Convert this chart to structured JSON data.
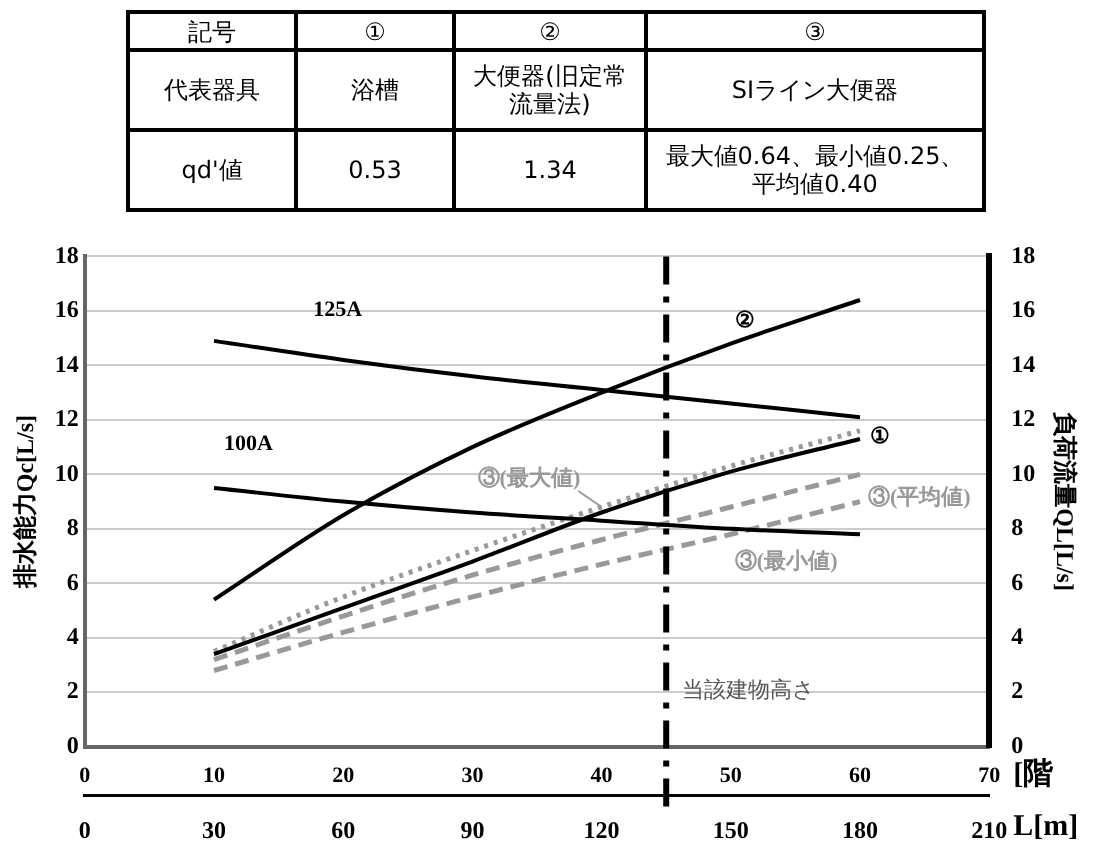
{
  "chart_data": [
    {
      "type": "other",
      "annotations": [
        "記号",
        "①",
        "②",
        "③",
        "代表器具",
        "浴槽",
        "大便器(旧定常流量法)",
        "SIライン大便器",
        "qd'値",
        "0.53",
        "1.34",
        "最大値0.64、最小値0.25、平均値0.40"
      ]
    },
    {
      "type": "line",
      "x": [
        10,
        20,
        30,
        40,
        50,
        60
      ],
      "series": [
        {
          "name": "125A",
          "color": "#000000",
          "values": [
            14.9,
            14.2,
            13.6,
            13.1,
            12.6,
            12.1
          ]
        },
        {
          "name": "100A",
          "color": "#000000",
          "values": [
            9.5,
            9.0,
            8.6,
            8.3,
            8.0,
            7.8
          ]
        },
        {
          "name": "②",
          "color": "#000000",
          "values": [
            5.4,
            8.5,
            11.0,
            13.0,
            14.8,
            16.4
          ]
        },
        {
          "name": "①",
          "color": "#000000",
          "values": [
            3.4,
            5.1,
            6.8,
            8.6,
            10.1,
            11.3
          ]
        },
        {
          "name": "③(最大値)",
          "color": "#999999",
          "line_style": "dotted",
          "values": [
            3.5,
            5.5,
            7.2,
            8.8,
            10.3,
            11.6
          ]
        },
        {
          "name": "③(平均値)",
          "color": "#999999",
          "line_style": "dashed",
          "values": [
            3.2,
            4.8,
            6.3,
            7.6,
            8.8,
            10.0
          ]
        },
        {
          "name": "③(最小値)",
          "color": "#999999",
          "line_style": "dashed",
          "values": [
            2.8,
            4.2,
            5.5,
            6.7,
            7.8,
            9.0
          ]
        }
      ],
      "xlim": [
        0,
        70
      ],
      "xticks": [
        0,
        10,
        20,
        30,
        40,
        50,
        60,
        70
      ],
      "xlabel": "[階",
      "x2lim": [
        0,
        210
      ],
      "x2ticks": [
        0,
        30,
        60,
        90,
        120,
        150,
        180,
        210
      ],
      "x2label": "L[m]",
      "ylim": [
        0,
        18
      ],
      "yticks": [
        0,
        2,
        4,
        6,
        8,
        10,
        12,
        14,
        16,
        18
      ],
      "ylabel": "排水能力Qc[L/s]",
      "y2lim": [
        0,
        18
      ],
      "y2ticks": [
        0,
        2,
        4,
        6,
        8,
        10,
        12,
        14,
        16,
        18
      ],
      "y2label": "負荷流量QL[L/s]",
      "ref_lines": [
        {
          "axis": "x",
          "value": 45,
          "label": "当該建物高さ",
          "color": "#000000",
          "line_style": "dashed"
        }
      ],
      "grid": "y",
      "legend": false
    }
  ]
}
